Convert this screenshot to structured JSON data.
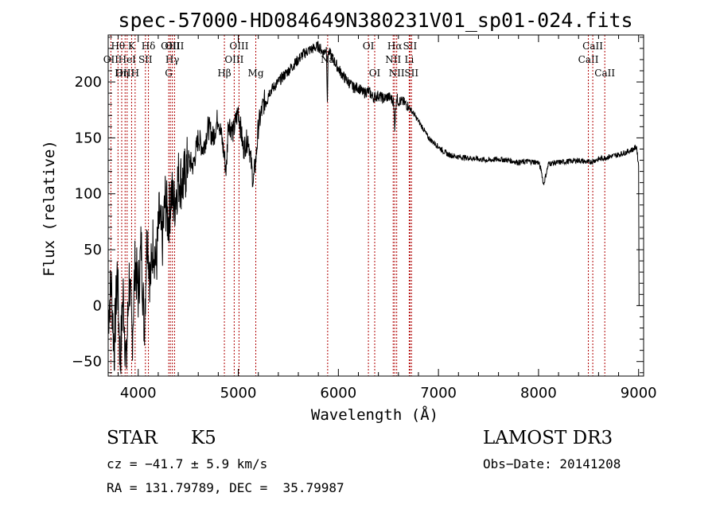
{
  "chart_data": {
    "type": "line",
    "title": "spec-57000-HD084649N380231V01_sp01-024.fits",
    "xlabel": "Wavelength (Å)",
    "ylabel": "Flux (relative)",
    "xlim": [
      3700,
      9050
    ],
    "ylim": [
      -63,
      242
    ],
    "x_ticks": [
      4000,
      5000,
      6000,
      7000,
      8000,
      9000
    ],
    "y_ticks": [
      -50,
      0,
      50,
      100,
      150,
      200
    ],
    "series": [
      {
        "name": "flux",
        "x": [
          3700,
          3730,
          3760,
          3790,
          3820,
          3850,
          3880,
          3910,
          3940,
          3970,
          4000,
          4030,
          4060,
          4090,
          4120,
          4150,
          4180,
          4210,
          4240,
          4270,
          4300,
          4330,
          4360,
          4400,
          4450,
          4500,
          4550,
          4600,
          4650,
          4700,
          4750,
          4800,
          4850,
          4880,
          4900,
          4950,
          5000,
          5050,
          5100,
          5150,
          5180,
          5200,
          5250,
          5300,
          5350,
          5400,
          5450,
          5500,
          5550,
          5600,
          5650,
          5700,
          5750,
          5800,
          5850,
          5880,
          5890,
          5900,
          5950,
          6000,
          6050,
          6100,
          6150,
          6200,
          6250,
          6300,
          6350,
          6400,
          6450,
          6500,
          6550,
          6563,
          6580,
          6600,
          6650,
          6700,
          6750,
          6800,
          6850,
          6900,
          6950,
          7000,
          7050,
          7100,
          7150,
          7200,
          7300,
          7400,
          7500,
          7600,
          7700,
          7800,
          7900,
          8000,
          8030,
          8050,
          8100,
          8200,
          8300,
          8400,
          8500,
          8600,
          8700,
          8800,
          8900,
          8950,
          8980,
          9000,
          9005
        ],
        "y": [
          -10,
          20,
          -40,
          30,
          -50,
          10,
          -55,
          25,
          -30,
          40,
          10,
          55,
          -20,
          70,
          20,
          60,
          35,
          80,
          55,
          95,
          75,
          100,
          90,
          115,
          110,
          130,
          125,
          150,
          140,
          160,
          150,
          170,
          140,
          120,
          165,
          155,
          175,
          140,
          150,
          110,
          135,
          160,
          180,
          190,
          195,
          200,
          205,
          210,
          215,
          220,
          225,
          228,
          230,
          232,
          226,
          230,
          185,
          228,
          220,
          212,
          205,
          200,
          195,
          195,
          190,
          192,
          186,
          188,
          185,
          187,
          183,
          160,
          186,
          183,
          182,
          178,
          172,
          165,
          158,
          150,
          146,
          142,
          138,
          135,
          134,
          133,
          132,
          131,
          130,
          131,
          130,
          128,
          129,
          128,
          120,
          108,
          127,
          128,
          129,
          130,
          128,
          131,
          133,
          135,
          138,
          140,
          142,
          125,
          0
        ]
      }
    ],
    "lines": [
      {
        "name": "Hθ",
        "wave": 3798,
        "row": 0
      },
      {
        "name": "OII",
        "wave": 3727,
        "row": 1
      },
      {
        "name": "OIII",
        "wave": 3869,
        "row": 2
      },
      {
        "name": "Hη",
        "wave": 3835,
        "row": 2
      },
      {
        "name": "HeI",
        "wave": 3889,
        "row": 1
      },
      {
        "name": "K",
        "wave": 3934,
        "row": 0
      },
      {
        "name": "H",
        "wave": 3969,
        "row": 2
      },
      {
        "name": "SII",
        "wave": 4072,
        "row": 1
      },
      {
        "name": "Hδ",
        "wave": 4102,
        "row": 0
      },
      {
        "name": "G",
        "wave": 4305,
        "row": 2
      },
      {
        "name": "OIII",
        "wave": 4321,
        "row": 0
      },
      {
        "name": "Hγ",
        "wave": 4341,
        "row": 1
      },
      {
        "name": "OIII",
        "wave": 4363,
        "row": 0
      },
      {
        "name": "Hβ",
        "wave": 4861,
        "row": 2
      },
      {
        "name": "OIII",
        "wave": 4959,
        "row": 1
      },
      {
        "name": "OIII",
        "wave": 5007,
        "row": 0
      },
      {
        "name": "Mg",
        "wave": 5175,
        "row": 2
      },
      {
        "name": "Na",
        "wave": 5893,
        "row": 1
      },
      {
        "name": "OI",
        "wave": 6300,
        "row": 0
      },
      {
        "name": "OI",
        "wave": 6363,
        "row": 2
      },
      {
        "name": "NII",
        "wave": 6548,
        "row": 1
      },
      {
        "name": "Hα",
        "wave": 6563,
        "row": 0
      },
      {
        "name": "NII",
        "wave": 6583,
        "row": 2
      },
      {
        "name": "Li",
        "wave": 6708,
        "row": 1
      },
      {
        "name": "SII",
        "wave": 6716,
        "row": 0
      },
      {
        "name": "SII",
        "wave": 6731,
        "row": 2
      },
      {
        "name": "CaII",
        "wave": 8498,
        "row": 1
      },
      {
        "name": "CaII",
        "wave": 8542,
        "row": 0
      },
      {
        "name": "CaII",
        "wave": 8662,
        "row": 2
      }
    ]
  },
  "info": {
    "object_type": "STAR",
    "subclass": "K5",
    "survey": "LAMOST DR3",
    "cz": "cz = −41.7 ± 5.9 km/s",
    "obs_date": "Obs−Date: 20141208",
    "radec": "RA = 131.79789, DEC =  35.79987"
  },
  "colors": {
    "spectrum": "#000000",
    "line_marker": "#b00000"
  }
}
